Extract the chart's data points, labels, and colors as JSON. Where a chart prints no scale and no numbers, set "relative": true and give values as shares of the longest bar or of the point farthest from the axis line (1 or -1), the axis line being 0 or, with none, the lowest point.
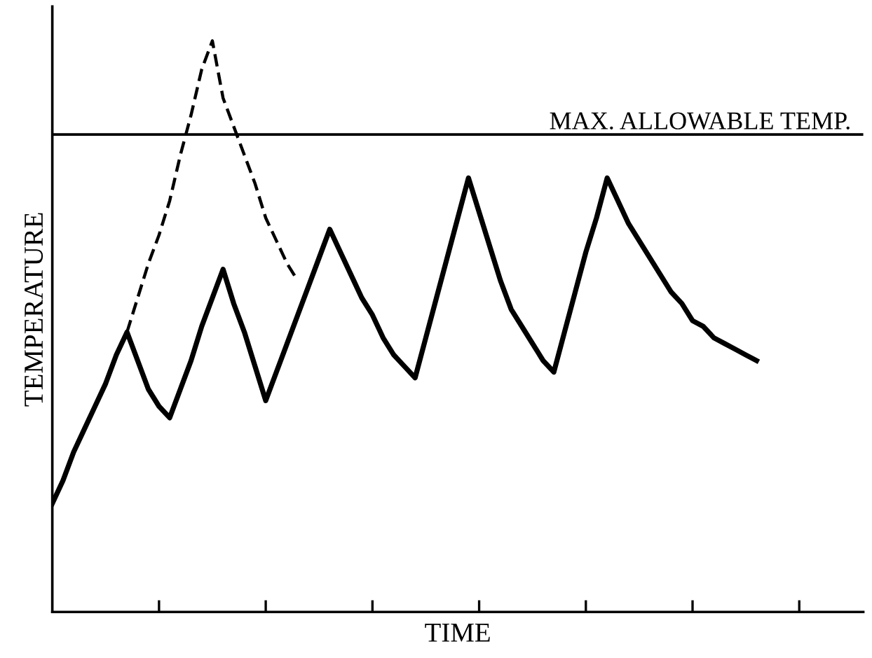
{
  "chart_data": {
    "type": "line",
    "relative": true,
    "xlabel": "TIME",
    "ylabel": "TEMPERATURE",
    "categories": [
      null,
      null,
      null,
      null,
      null,
      null,
      null,
      null,
      null,
      null,
      null,
      null,
      null,
      null,
      null,
      null,
      null,
      null,
      null,
      null,
      null,
      null,
      null,
      null,
      null,
      null,
      null,
      null,
      null,
      null,
      null,
      null,
      null,
      null,
      null,
      null,
      null,
      null,
      null,
      null,
      null,
      null,
      null,
      null,
      null,
      null,
      null,
      null,
      null,
      null,
      null,
      null,
      null,
      null,
      null,
      null,
      null,
      null,
      null,
      null,
      null,
      null,
      null,
      null,
      null,
      null,
      null,
      null,
      null,
      null,
      null,
      null,
      null,
      null,
      null,
      null,
      null
    ],
    "series": [
      {
        "color": "#000000",
        "line_style": "solid",
        "values": [
          0.19,
          0.23,
          0.28,
          0.32,
          0.36,
          0.4,
          0.45,
          0.49,
          0.44,
          0.39,
          0.36,
          0.34,
          0.39,
          0.44,
          0.5,
          0.55,
          0.6,
          0.54,
          0.49,
          0.43,
          0.37,
          0.42,
          0.47,
          0.52,
          0.57,
          0.62,
          0.67,
          0.63,
          0.59,
          0.55,
          0.52,
          0.48,
          0.45,
          0.43,
          0.41,
          0.48,
          0.55,
          0.62,
          0.69,
          0.76,
          0.7,
          0.64,
          0.58,
          0.53,
          0.5,
          0.47,
          0.44,
          0.42,
          0.49,
          0.56,
          0.63,
          0.69,
          0.76,
          0.72,
          0.68,
          0.65,
          0.62,
          0.59,
          0.56,
          0.54,
          0.51,
          0.5,
          0.48,
          0.47,
          0.46,
          0.45,
          0.44,
          null,
          null,
          null,
          null,
          null,
          null,
          null,
          null,
          null,
          null
        ]
      },
      {
        "color": "#000000",
        "line_style": "dashed",
        "values": [
          null,
          null,
          null,
          null,
          null,
          null,
          null,
          0.49,
          0.55,
          0.61,
          0.66,
          0.72,
          0.8,
          0.87,
          0.95,
          1.0,
          0.9,
          0.85,
          0.8,
          0.75,
          0.69,
          0.65,
          0.61,
          0.58,
          null,
          null,
          null,
          null,
          null,
          null,
          null,
          null,
          null,
          null,
          null,
          null,
          null,
          null,
          null,
          null,
          null,
          null,
          null,
          null,
          null,
          null,
          null,
          null,
          null,
          null,
          null,
          null,
          null,
          null,
          null,
          null,
          null,
          null,
          null,
          null,
          null,
          null,
          null,
          null,
          null,
          null,
          null,
          null,
          null,
          null,
          null,
          null,
          null,
          null,
          null,
          null,
          null
        ]
      }
    ],
    "ref_lines": [
      {
        "axis": "y",
        "value": 0.836,
        "label": "MAX. ALLOWABLE TEMP.",
        "color": "#000000"
      }
    ],
    "grid": false,
    "legend": false,
    "marker": "none"
  }
}
